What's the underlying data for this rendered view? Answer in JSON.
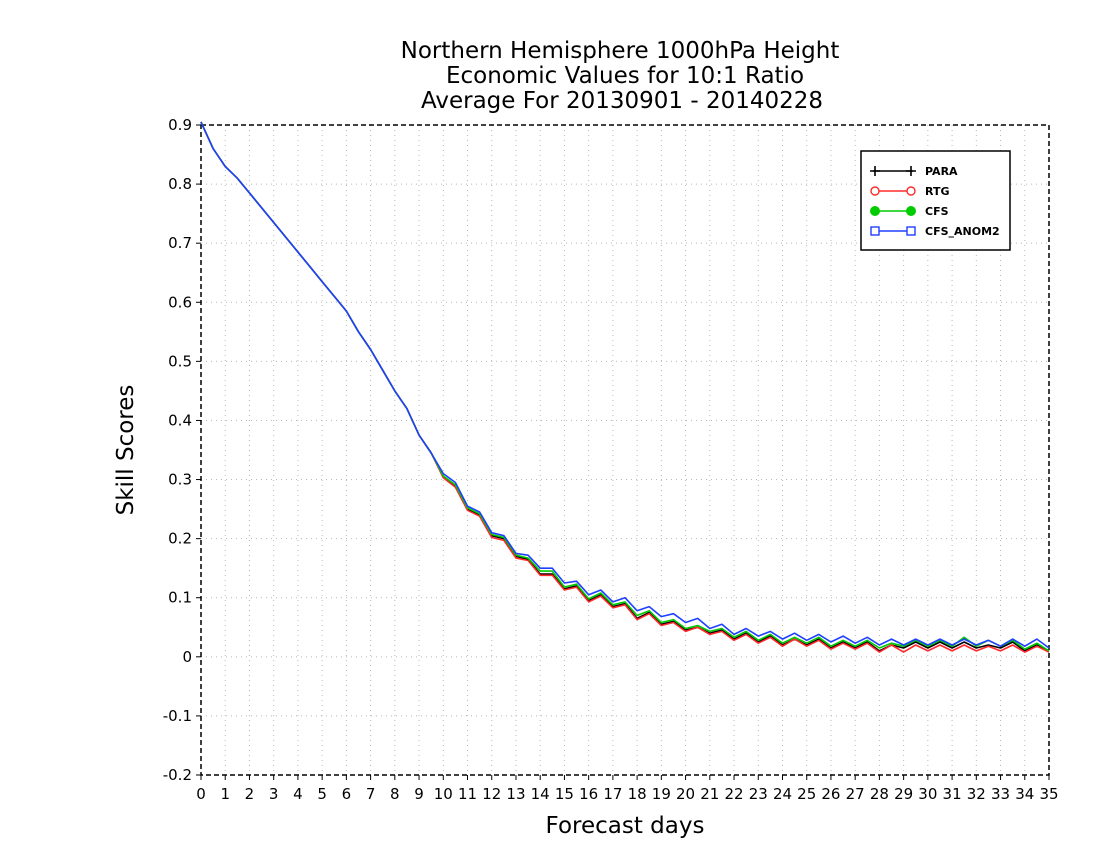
{
  "chart_data": {
    "type": "line",
    "title_lines": [
      "Northern Hemisphere 1000hPa Height",
      "Economic Values for 10:1 Ratio",
      "Average For 20130901 - 20140228"
    ],
    "xlabel": "Forecast days",
    "ylabel": "Skill Scores",
    "xlim": [
      0,
      35
    ],
    "ylim": [
      -0.2,
      0.9
    ],
    "xticks": [
      "0",
      "1",
      "2",
      "3",
      "4",
      "5",
      "6",
      "7",
      "8",
      "9",
      "10",
      "11",
      "12",
      "13",
      "14",
      "15",
      "16",
      "17",
      "18",
      "19",
      "20",
      "21",
      "22",
      "23",
      "24",
      "25",
      "26",
      "27",
      "28",
      "29",
      "30",
      "31",
      "32",
      "33",
      "34",
      "35"
    ],
    "yticks": [
      "0.9",
      "0.8",
      "0.7",
      "0.6",
      "0.5",
      "0.4",
      "0.3",
      "0.2",
      "0.1",
      "0",
      "-0.1",
      "-0.2"
    ],
    "grid": true,
    "legend_position": "top-right",
    "x": [
      0,
      0.5,
      1,
      1.5,
      2,
      2.5,
      3,
      3.5,
      4,
      4.5,
      5,
      5.5,
      6,
      6.5,
      7,
      7.5,
      8,
      8.5,
      9,
      9.5,
      10,
      10.5,
      11,
      11.5,
      12,
      12.5,
      13,
      13.5,
      14,
      14.5,
      15,
      15.5,
      16,
      16.5,
      17,
      17.5,
      18,
      18.5,
      19,
      19.5,
      20,
      20.5,
      21,
      21.5,
      22,
      22.5,
      23,
      23.5,
      24,
      24.5,
      25,
      25.5,
      26,
      26.5,
      27,
      27.5,
      28,
      28.5,
      29,
      29.5,
      30,
      30.5,
      31,
      31.5,
      32,
      32.5,
      33,
      33.5,
      34,
      34.5,
      35
    ],
    "series": [
      {
        "name": "PARA",
        "color": "#000000",
        "marker": "plus",
        "values": [
          0.905,
          0.86,
          0.83,
          0.81,
          0.785,
          0.76,
          0.735,
          0.71,
          0.685,
          0.66,
          0.635,
          0.61,
          0.585,
          0.55,
          0.52,
          0.485,
          0.45,
          0.42,
          0.375,
          0.345,
          0.305,
          0.29,
          0.25,
          0.24,
          0.205,
          0.2,
          0.17,
          0.165,
          0.14,
          0.14,
          0.115,
          0.12,
          0.095,
          0.105,
          0.085,
          0.09,
          0.065,
          0.075,
          0.055,
          0.06,
          0.045,
          0.05,
          0.04,
          0.045,
          0.03,
          0.04,
          0.025,
          0.035,
          0.02,
          0.03,
          0.02,
          0.03,
          0.015,
          0.025,
          0.015,
          0.025,
          0.01,
          0.02,
          0.015,
          0.025,
          0.015,
          0.025,
          0.015,
          0.025,
          0.015,
          0.02,
          0.015,
          0.025,
          0.01,
          0.02,
          0.01
        ]
      },
      {
        "name": "RTG",
        "color": "#ff2a2a",
        "marker": "circle",
        "values": [
          0.905,
          0.86,
          0.83,
          0.81,
          0.785,
          0.76,
          0.735,
          0.71,
          0.685,
          0.66,
          0.635,
          0.61,
          0.585,
          0.55,
          0.52,
          0.485,
          0.45,
          0.42,
          0.375,
          0.345,
          0.303,
          0.287,
          0.248,
          0.238,
          0.202,
          0.197,
          0.167,
          0.163,
          0.138,
          0.138,
          0.113,
          0.118,
          0.093,
          0.103,
          0.083,
          0.088,
          0.063,
          0.073,
          0.053,
          0.058,
          0.043,
          0.05,
          0.038,
          0.043,
          0.028,
          0.038,
          0.023,
          0.033,
          0.018,
          0.03,
          0.018,
          0.028,
          0.013,
          0.023,
          0.013,
          0.023,
          0.008,
          0.02,
          0.008,
          0.02,
          0.01,
          0.02,
          0.01,
          0.02,
          0.01,
          0.018,
          0.01,
          0.02,
          0.008,
          0.018,
          0.008
        ]
      },
      {
        "name": "CFS",
        "color": "#00cc00",
        "marker": "filled-circle",
        "values": [
          0.905,
          0.86,
          0.83,
          0.81,
          0.785,
          0.76,
          0.735,
          0.71,
          0.685,
          0.66,
          0.635,
          0.61,
          0.585,
          0.55,
          0.52,
          0.485,
          0.45,
          0.42,
          0.375,
          0.345,
          0.306,
          0.291,
          0.252,
          0.242,
          0.207,
          0.202,
          0.172,
          0.167,
          0.145,
          0.145,
          0.118,
          0.123,
          0.098,
          0.108,
          0.088,
          0.093,
          0.07,
          0.078,
          0.058,
          0.063,
          0.048,
          0.053,
          0.043,
          0.048,
          0.033,
          0.043,
          0.028,
          0.038,
          0.023,
          0.033,
          0.023,
          0.033,
          0.018,
          0.028,
          0.018,
          0.028,
          0.015,
          0.023,
          0.018,
          0.028,
          0.018,
          0.028,
          0.018,
          0.033,
          0.018,
          0.028,
          0.018,
          0.028,
          0.013,
          0.023,
          0.01
        ]
      },
      {
        "name": "CFS_ANOM2",
        "color": "#2040ff",
        "marker": "square",
        "values": [
          0.905,
          0.86,
          0.83,
          0.81,
          0.785,
          0.76,
          0.735,
          0.71,
          0.685,
          0.66,
          0.635,
          0.61,
          0.585,
          0.55,
          0.52,
          0.485,
          0.45,
          0.42,
          0.375,
          0.345,
          0.31,
          0.295,
          0.255,
          0.245,
          0.21,
          0.205,
          0.175,
          0.172,
          0.15,
          0.15,
          0.125,
          0.128,
          0.105,
          0.113,
          0.093,
          0.1,
          0.078,
          0.085,
          0.068,
          0.073,
          0.058,
          0.065,
          0.048,
          0.055,
          0.038,
          0.048,
          0.035,
          0.043,
          0.03,
          0.04,
          0.028,
          0.038,
          0.025,
          0.035,
          0.023,
          0.033,
          0.02,
          0.03,
          0.02,
          0.03,
          0.02,
          0.03,
          0.02,
          0.03,
          0.02,
          0.028,
          0.018,
          0.03,
          0.018,
          0.03,
          0.015
        ]
      }
    ]
  }
}
